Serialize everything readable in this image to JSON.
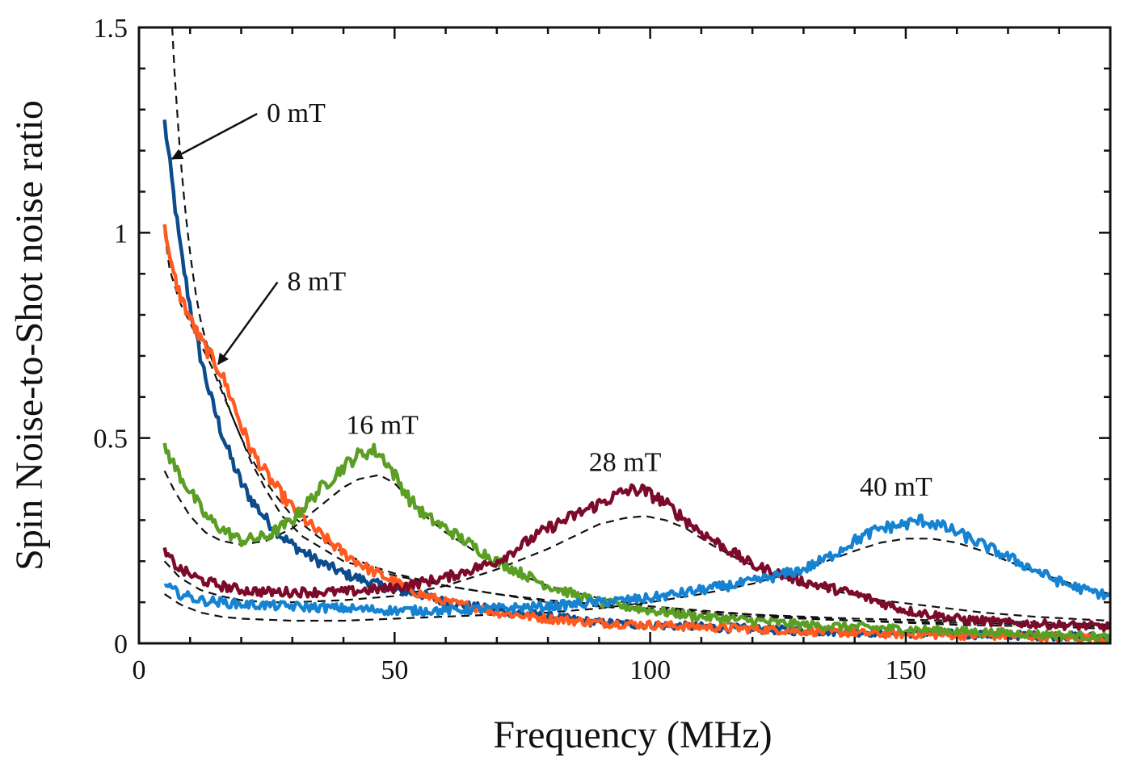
{
  "chart_data": {
    "type": "line",
    "title": "",
    "xlabel": "Frequency (MHz)",
    "ylabel": "Spin Noise-to-Shot noise ratio",
    "xlim": [
      0,
      190
    ],
    "ylim": [
      0,
      1.5
    ],
    "grid": false,
    "x_ticks": [
      0,
      50,
      100,
      150
    ],
    "x_tick_labels": [
      "0",
      "50",
      "100",
      "150"
    ],
    "y_ticks": [
      0,
      0.5,
      1,
      1.5
    ],
    "y_tick_labels": [
      "0",
      "0.5",
      "1",
      "1.5"
    ],
    "annotations": [
      {
        "id": "0mt",
        "text": "0 mT",
        "x": 25,
        "y": 1.27,
        "arrow_to": [
          6.5,
          1.18
        ]
      },
      {
        "id": "8mt",
        "text": "8 mT",
        "x": 29,
        "y": 0.86,
        "arrow_to": [
          15.5,
          0.68
        ]
      },
      {
        "id": "16mt",
        "text": "16 mT",
        "x": 40.5,
        "y": 0.51
      },
      {
        "id": "28mt",
        "text": "28 mT",
        "x": 88,
        "y": 0.42
      },
      {
        "id": "40mt",
        "text": "40 mT",
        "x": 141,
        "y": 0.36
      }
    ],
    "series": [
      {
        "name": "0 mT",
        "color": "#0d4c8c",
        "linewidth": 4.5,
        "x": [
          5,
          6,
          7,
          8,
          10,
          12,
          14,
          16,
          18,
          20,
          22,
          25,
          28,
          30,
          35,
          40,
          45,
          50,
          55,
          60,
          70,
          80,
          90,
          100,
          110,
          120,
          130,
          140,
          150,
          160,
          170,
          180,
          190
        ],
        "y": [
          1.27,
          1.17,
          1.07,
          0.97,
          0.82,
          0.7,
          0.6,
          0.52,
          0.45,
          0.39,
          0.35,
          0.3,
          0.26,
          0.24,
          0.2,
          0.17,
          0.15,
          0.13,
          0.12,
          0.1,
          0.08,
          0.065,
          0.05,
          0.045,
          0.04,
          0.035,
          0.03,
          0.028,
          0.025,
          0.022,
          0.02,
          0.018,
          0.015
        ]
      },
      {
        "name": "8 mT",
        "color": "#ff5a1f",
        "linewidth": 4.5,
        "x": [
          5,
          6,
          8,
          10,
          12,
          14,
          15,
          16,
          18,
          20,
          22,
          25,
          28,
          30,
          35,
          40,
          45,
          50,
          55,
          60,
          65,
          70,
          80,
          90,
          100,
          110,
          120,
          130,
          140,
          150,
          160,
          170,
          180,
          190
        ],
        "y": [
          1.03,
          0.93,
          0.85,
          0.79,
          0.74,
          0.7,
          0.68,
          0.66,
          0.6,
          0.53,
          0.47,
          0.41,
          0.36,
          0.33,
          0.27,
          0.22,
          0.18,
          0.15,
          0.12,
          0.1,
          0.09,
          0.075,
          0.06,
          0.05,
          0.045,
          0.04,
          0.035,
          0.03,
          0.025,
          0.022,
          0.02,
          0.018,
          0.015,
          0.012
        ]
      },
      {
        "name": "16 mT",
        "color": "#5a9e24",
        "linewidth": 4.5,
        "x": [
          5,
          7,
          10,
          13,
          16,
          20,
          25,
          30,
          35,
          40,
          43,
          46,
          48,
          50,
          53,
          56,
          60,
          65,
          70,
          75,
          80,
          90,
          100,
          110,
          120,
          130,
          140,
          150,
          160,
          170,
          180,
          190
        ],
        "y": [
          0.48,
          0.43,
          0.37,
          0.31,
          0.28,
          0.25,
          0.26,
          0.3,
          0.37,
          0.43,
          0.46,
          0.47,
          0.45,
          0.41,
          0.35,
          0.31,
          0.28,
          0.24,
          0.2,
          0.17,
          0.14,
          0.1,
          0.08,
          0.065,
          0.055,
          0.045,
          0.04,
          0.035,
          0.03,
          0.025,
          0.02,
          0.015
        ]
      },
      {
        "name": "28 mT",
        "color": "#7c0a2a",
        "linewidth": 4.5,
        "x": [
          5,
          8,
          12,
          16,
          20,
          25,
          30,
          40,
          50,
          60,
          70,
          75,
          80,
          85,
          90,
          95,
          98,
          102,
          106,
          110,
          115,
          120,
          125,
          130,
          140,
          150,
          160,
          170,
          180,
          190
        ],
        "y": [
          0.22,
          0.18,
          0.155,
          0.14,
          0.13,
          0.125,
          0.125,
          0.125,
          0.135,
          0.16,
          0.2,
          0.24,
          0.28,
          0.31,
          0.34,
          0.37,
          0.375,
          0.35,
          0.31,
          0.27,
          0.23,
          0.19,
          0.17,
          0.15,
          0.12,
          0.08,
          0.06,
          0.05,
          0.045,
          0.04
        ]
      },
      {
        "name": "40 mT",
        "color": "#1583d2",
        "linewidth": 4.5,
        "x": [
          5,
          8,
          12,
          16,
          20,
          30,
          40,
          50,
          60,
          70,
          80,
          90,
          100,
          110,
          120,
          130,
          135,
          140,
          145,
          150,
          153,
          156,
          160,
          165,
          170,
          175,
          180,
          185,
          190
        ],
        "y": [
          0.14,
          0.12,
          0.105,
          0.1,
          0.095,
          0.09,
          0.085,
          0.08,
          0.08,
          0.085,
          0.09,
          0.1,
          0.11,
          0.13,
          0.15,
          0.18,
          0.21,
          0.25,
          0.28,
          0.29,
          0.3,
          0.29,
          0.27,
          0.24,
          0.21,
          0.18,
          0.15,
          0.13,
          0.115
        ]
      }
    ],
    "fits": [
      {
        "name": "fit 0 mT",
        "color": "#111111",
        "dash": "10,7",
        "x": [
          6.5,
          7,
          8,
          9,
          10,
          11,
          12,
          13,
          14,
          16,
          18,
          20,
          22,
          25,
          28,
          32,
          36,
          40,
          50,
          60,
          70,
          80,
          90,
          100,
          120,
          140,
          160,
          180,
          190
        ],
        "y": [
          1.5,
          1.38,
          1.2,
          1.06,
          0.95,
          0.86,
          0.79,
          0.74,
          0.7,
          0.63,
          0.56,
          0.5,
          0.44,
          0.37,
          0.31,
          0.26,
          0.23,
          0.2,
          0.165,
          0.14,
          0.12,
          0.1,
          0.09,
          0.08,
          0.065,
          0.055,
          0.05,
          0.045,
          0.04
        ]
      },
      {
        "name": "fit 8 mT",
        "color": "#111111",
        "dash": "10,7",
        "x": [
          5,
          6,
          8,
          10,
          12,
          14,
          16,
          18,
          20,
          22,
          25,
          28,
          30,
          35,
          40,
          45,
          50,
          60,
          70,
          80,
          90,
          100,
          120,
          140,
          160,
          180,
          190
        ],
        "y": [
          1.0,
          0.91,
          0.83,
          0.78,
          0.73,
          0.68,
          0.62,
          0.56,
          0.5,
          0.45,
          0.39,
          0.34,
          0.31,
          0.26,
          0.22,
          0.19,
          0.17,
          0.14,
          0.12,
          0.105,
          0.095,
          0.085,
          0.07,
          0.06,
          0.055,
          0.05,
          0.045
        ]
      },
      {
        "name": "fit 16 mT",
        "color": "#111111",
        "dash": "10,7",
        "x": [
          5,
          7,
          10,
          13,
          16,
          20,
          25,
          30,
          35,
          40,
          43,
          47,
          50,
          53,
          56,
          60,
          65,
          70,
          80,
          90,
          100,
          120,
          140,
          160,
          180,
          190
        ],
        "y": [
          0.42,
          0.37,
          0.31,
          0.27,
          0.25,
          0.24,
          0.25,
          0.28,
          0.33,
          0.38,
          0.4,
          0.41,
          0.39,
          0.35,
          0.31,
          0.27,
          0.23,
          0.19,
          0.14,
          0.11,
          0.09,
          0.07,
          0.055,
          0.045,
          0.04,
          0.035
        ]
      },
      {
        "name": "fit 28 mT",
        "color": "#111111",
        "dash": "10,7",
        "x": [
          5,
          8,
          12,
          16,
          20,
          25,
          30,
          40,
          50,
          60,
          70,
          80,
          85,
          90,
          95,
          99,
          103,
          107,
          112,
          118,
          125,
          135,
          145,
          155,
          165,
          175,
          185,
          190
        ],
        "y": [
          0.2,
          0.16,
          0.13,
          0.115,
          0.105,
          0.1,
          0.1,
          0.105,
          0.115,
          0.14,
          0.18,
          0.23,
          0.26,
          0.29,
          0.305,
          0.31,
          0.3,
          0.28,
          0.24,
          0.2,
          0.165,
          0.13,
          0.105,
          0.09,
          0.075,
          0.065,
          0.058,
          0.055
        ]
      },
      {
        "name": "fit 40 mT",
        "color": "#111111",
        "dash": "10,7",
        "x": [
          5,
          8,
          12,
          16,
          20,
          30,
          40,
          50,
          60,
          70,
          80,
          90,
          100,
          110,
          120,
          130,
          140,
          145,
          150,
          155,
          160,
          165,
          170,
          175,
          180,
          185,
          190
        ],
        "y": [
          0.12,
          0.095,
          0.075,
          0.065,
          0.06,
          0.055,
          0.055,
          0.06,
          0.065,
          0.07,
          0.075,
          0.085,
          0.1,
          0.12,
          0.145,
          0.18,
          0.225,
          0.245,
          0.255,
          0.255,
          0.245,
          0.225,
          0.2,
          0.175,
          0.155,
          0.135,
          0.12
        ]
      }
    ]
  }
}
